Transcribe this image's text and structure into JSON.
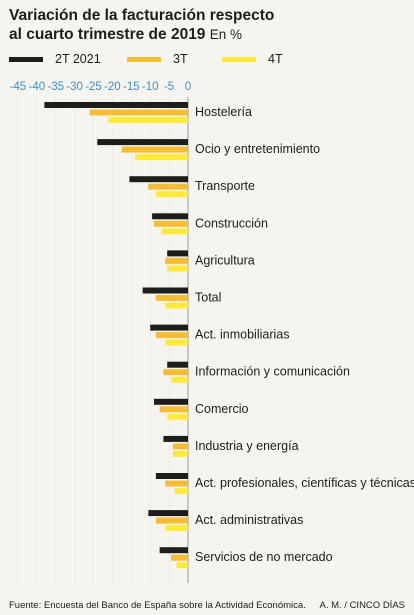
{
  "title": {
    "line1": "Variación de la facturación respecto",
    "line2": "al cuarto trimestre de 2019",
    "unit": "En %"
  },
  "footer": {
    "source": "Fuente: Encuesta del Banco de España sobre la Actividad Económica.",
    "credit": "A. M. / CINCO DÍAS"
  },
  "chart_data": {
    "type": "bar",
    "orientation": "horizontal",
    "xlim": [
      -45,
      0
    ],
    "x_ticks": [
      "-45",
      "-40",
      "-35",
      "-30",
      "-25",
      "-20",
      "-15",
      "-10",
      "-5",
      "0"
    ],
    "legend_position": "top",
    "categories": [
      "Hostelería",
      "Ocio y entretenimiento",
      "Transporte",
      "Construcción",
      "Agricultura",
      "Total",
      "Act. inmobiliarias",
      "Información y comunicación",
      "Comercio",
      "Industria y energía",
      "Act. profesionales, científicas y técnicas",
      "Act. administrativas",
      "Servicios de no mercado"
    ],
    "series": [
      {
        "name": "2T 2021",
        "color": "#1d1d1b",
        "values": [
          -38,
          -24,
          -15.5,
          -9.5,
          -5.5,
          -12,
          -10,
          -5.5,
          -9,
          -6.5,
          -8.5,
          -10.5,
          -7.5
        ]
      },
      {
        "name": "3T",
        "color": "#f5bd33",
        "values": [
          -26,
          -17.5,
          -10.5,
          -9,
          -6,
          -8.5,
          -8.5,
          -6.5,
          -7.5,
          -4,
          -6,
          -8.5,
          -4.5
        ]
      },
      {
        "name": "4T",
        "color": "#fdea3a",
        "values": [
          -21,
          -14,
          -8.5,
          -7,
          -5.5,
          -6,
          -6,
          -4.5,
          -5.5,
          -4,
          -3.5,
          -6,
          -3
        ]
      }
    ]
  }
}
